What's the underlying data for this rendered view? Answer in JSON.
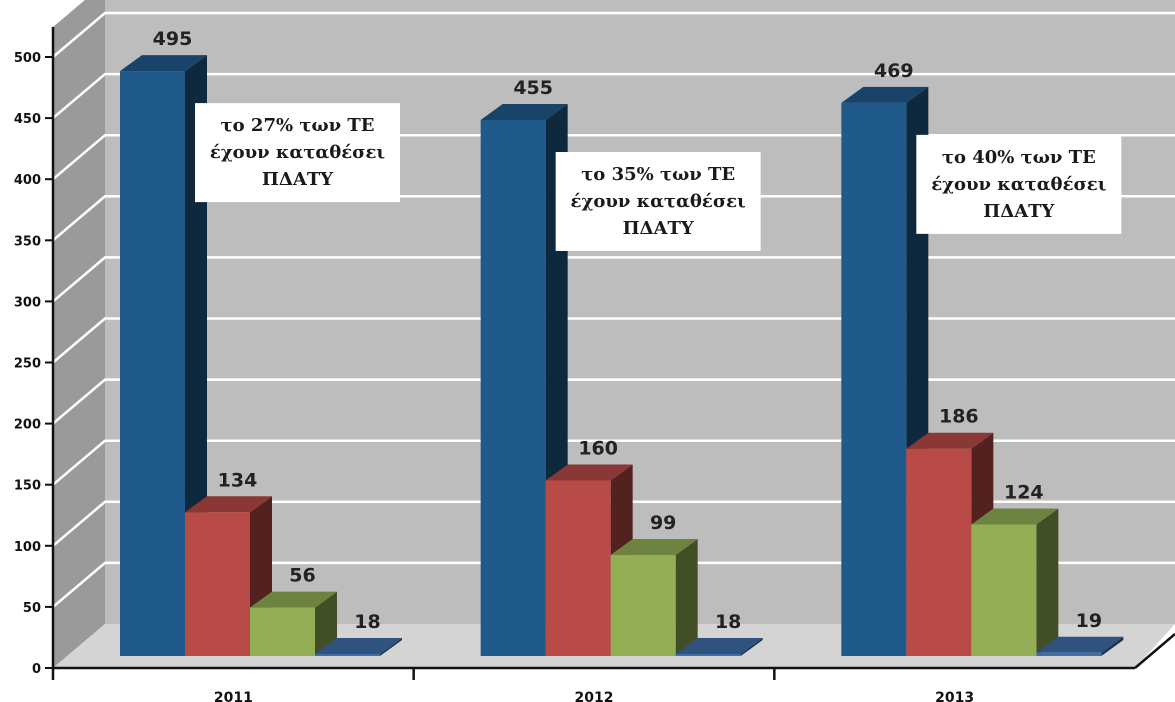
{
  "chart_data": {
    "type": "bar",
    "categories": [
      "2011",
      "2012",
      "2013"
    ],
    "series": [
      {
        "values": [
          495,
          455,
          469
        ],
        "color": "#1f5a8a"
      },
      {
        "values": [
          134,
          160,
          186
        ],
        "color": "#b84a47"
      },
      {
        "values": [
          56,
          99,
          124
        ],
        "color": "#93ae55"
      },
      {
        "values": [
          18,
          18,
          19
        ],
        "color": "#3f6fa8"
      }
    ],
    "ylim": [
      0,
      500
    ],
    "yticks": [
      "0",
      "50",
      "100",
      "150",
      "200",
      "250",
      "300",
      "350",
      "400",
      "450",
      "500"
    ],
    "grid": true,
    "annotations": [
      {
        "category": "2011",
        "lines": [
          "το 27% των ΤΕ",
          "έχουν καταθέσει",
          "ΠΔΑΤΥ"
        ]
      },
      {
        "category": "2012",
        "lines": [
          "το 35% των ΤΕ",
          "έχουν καταθέσει",
          "ΠΔΑΤΥ"
        ]
      },
      {
        "category": "2013",
        "lines": [
          "το 40% των ΤΕ",
          "έχουν καταθέσει",
          "ΠΔΑΤΥ"
        ]
      }
    ]
  }
}
